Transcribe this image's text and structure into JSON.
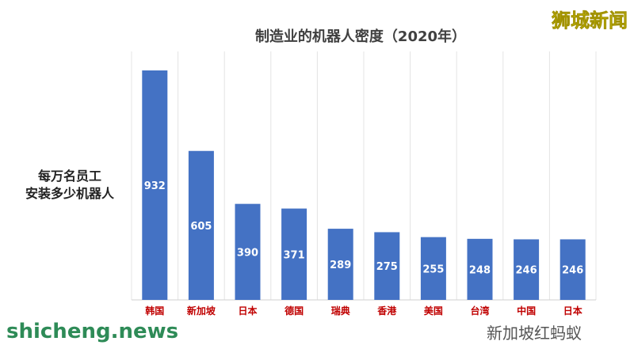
{
  "chart_data": {
    "type": "bar",
    "title": "制造业的机器人密度（2020年）",
    "ylabel": "每万名员工\n安装多少机器人",
    "categories": [
      "韩国",
      "新加坡",
      "日本",
      "德国",
      "瑞典",
      "香港",
      "美国",
      "台湾",
      "中国",
      "日本"
    ],
    "values": [
      932,
      605,
      390,
      371,
      289,
      275,
      255,
      248,
      246,
      246
    ],
    "ylim": [
      0,
      1000
    ],
    "grid": "vertical",
    "bar_color": "#4472c4",
    "category_label_color": "#c00000",
    "value_label_color": "#ffffff"
  },
  "watermarks": {
    "top_right": "狮城新闻",
    "bottom_left": "shicheng.news",
    "bottom_right": "新加坡红蚂蚁"
  }
}
